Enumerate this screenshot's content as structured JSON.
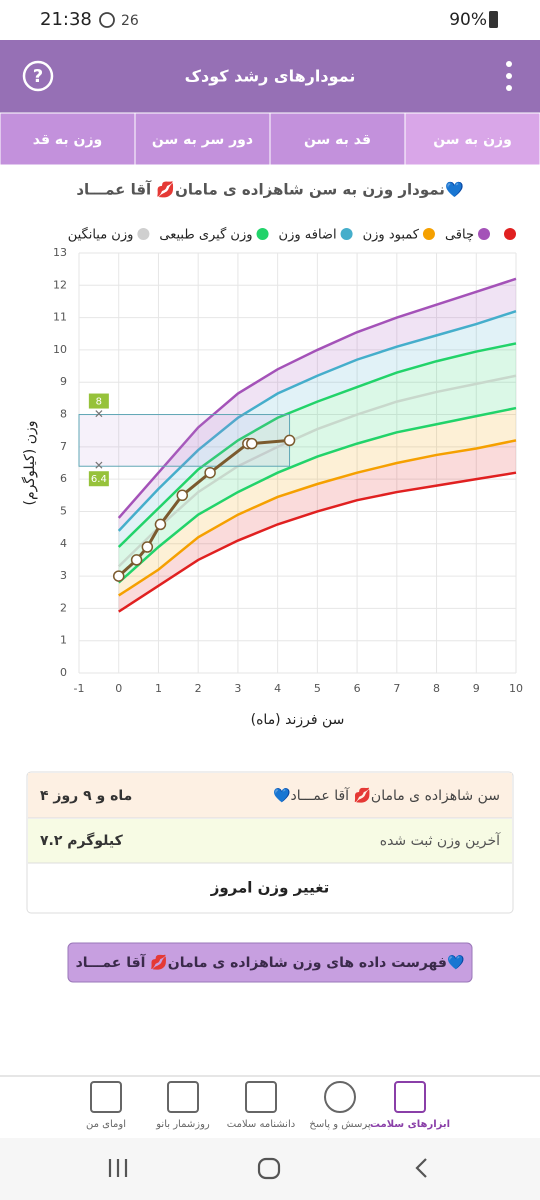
{
  "status_bar": {
    "time": "21:38",
    "notification_count": "26",
    "battery": "90%"
  },
  "header": {
    "title": "نمودارهای رشد کودک"
  },
  "tabs": [
    "وزن به سن",
    "قد به سن",
    "دور سر به سن",
    "وزن به قد"
  ],
  "chart_data": {
    "type": "line",
    "title": "نمودار وزن به سن شاهزاده ی مامان💋 آقا عمـــاد💙",
    "x_label": "سن فرزند (ماه)",
    "y_label": "وزن (کیلوگرم)",
    "legend": [
      {
        "label": null,
        "color": "#e02020"
      },
      {
        "label": "چاقی",
        "color": "#a452b8"
      },
      {
        "label": "کمبود وزن",
        "color": "#f5a000"
      },
      {
        "label": "اضافه وزن",
        "color": "#45aecb"
      },
      {
        "label": "وزن گیری طبیعی",
        "color": "#22d36a"
      },
      {
        "label": "وزن میانگین",
        "color": "#cfcfcf"
      }
    ],
    "x": [
      0,
      1,
      2,
      3,
      4,
      5,
      6,
      7,
      8,
      9,
      10
    ],
    "series": [
      {
        "color": "#e02020",
        "values": [
          1.9,
          2.7,
          3.5,
          4.1,
          4.6,
          5.0,
          5.35,
          5.6,
          5.8,
          6.0,
          6.2
        ]
      },
      {
        "color": "#f5a000",
        "values": [
          2.4,
          3.2,
          4.2,
          4.9,
          5.45,
          5.85,
          6.2,
          6.5,
          6.75,
          6.95,
          7.2
        ]
      },
      {
        "color": "#22d36a",
        "values": [
          2.8,
          3.9,
          4.9,
          5.6,
          6.2,
          6.7,
          7.1,
          7.45,
          7.7,
          7.95,
          8.2
        ]
      },
      {
        "color": "#c8d8cc",
        "values": [
          3.3,
          4.5,
          5.6,
          6.4,
          7.0,
          7.55,
          8.0,
          8.4,
          8.7,
          8.95,
          9.2
        ]
      },
      {
        "color": "#22d36a",
        "values": [
          3.9,
          5.1,
          6.3,
          7.2,
          7.9,
          8.4,
          8.85,
          9.3,
          9.65,
          9.95,
          10.2
        ]
      },
      {
        "color": "#45aecb",
        "values": [
          4.4,
          5.7,
          6.9,
          7.9,
          8.65,
          9.2,
          9.7,
          10.1,
          10.45,
          10.8,
          11.2
        ]
      },
      {
        "color": "#a452b8",
        "values": [
          4.8,
          6.2,
          7.6,
          8.65,
          9.4,
          10.0,
          10.55,
          11.0,
          11.4,
          11.8,
          12.2
        ]
      }
    ],
    "child": {
      "color": "#7b5a2e",
      "x": [
        0,
        0.45,
        0.72,
        1.05,
        1.6,
        2.3,
        3.25,
        3.35,
        4.3
      ],
      "values": [
        3.0,
        3.5,
        3.9,
        4.6,
        5.5,
        6.2,
        7.1,
        7.1,
        7.2
      ]
    },
    "target_range": [
      6.4,
      8
    ],
    "target_marker_x": -0.5,
    "bands": true,
    "grid": true,
    "xlim": [
      -1,
      10
    ],
    "xticks": [
      -1,
      0,
      1,
      2,
      3,
      4,
      5,
      6,
      7,
      8,
      9,
      10
    ],
    "ylim": [
      0,
      13
    ],
    "yticks": [
      0,
      1,
      2,
      3,
      4,
      5,
      6,
      7,
      8,
      9,
      10,
      11,
      12,
      13
    ]
  },
  "summary": {
    "rows": [
      {
        "label": "سن شاهزاده ی مامان💋 آقا عمـــاد💙",
        "value": "۴ ماه و ۹ روز"
      },
      {
        "label": "آخرین وزن ثبت شده",
        "value": "۷.۲ کیلوگرم"
      }
    ],
    "action": "تغییر وزن امروز"
  },
  "list_button": "فهرست داده های وزن شاهزاده ی مامان💋 آقا عمـــاد💙",
  "bottom_nav": [
    "ابزارهای سلامت",
    "پرسش و پاسخ",
    "دانشنامه سلامت",
    "روزشمار بانو",
    "اومای من"
  ]
}
